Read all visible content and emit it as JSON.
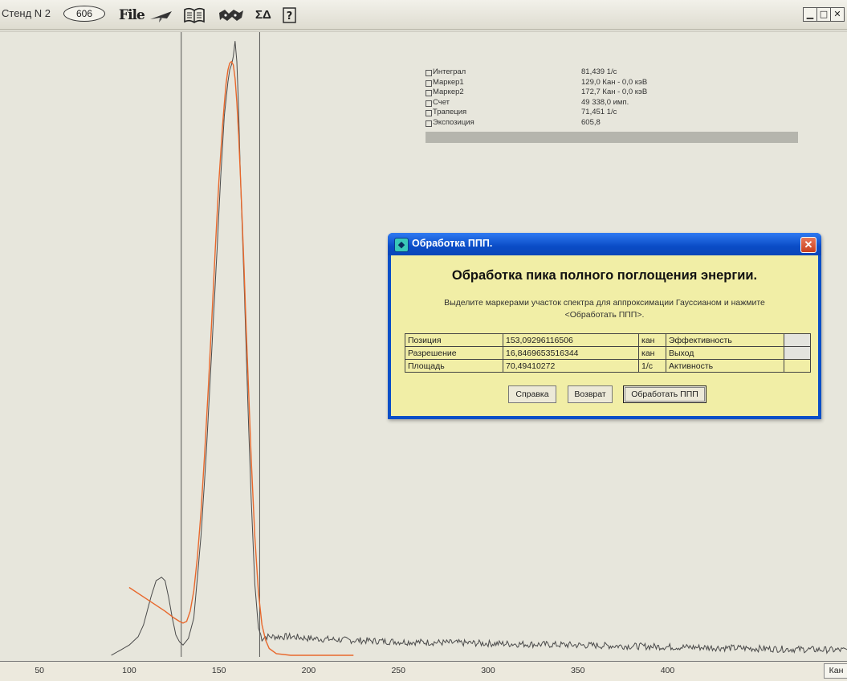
{
  "app": {
    "title": "Стенд N 2",
    "badge": "606",
    "toolbar": {
      "file_label": "File",
      "icons": [
        "plane-icon",
        "book-icon",
        "puzzle-icon",
        "scale-icon",
        "help-icon"
      ],
      "scale_label": "ΣΔ",
      "help_label": "?"
    },
    "window_buttons": {
      "minimize": "▁",
      "maximize": "□",
      "close": "✕"
    }
  },
  "info_panel": [
    {
      "label": "Интеграл",
      "value": "81,439 1/с"
    },
    {
      "label": "Маркер1",
      "value": "129,0 Кан -   0,0 кэВ"
    },
    {
      "label": "Маркер2",
      "value": "172,7 Кан -   0,0 кэВ"
    },
    {
      "label": "Счет",
      "value": "49 338,0 имп."
    },
    {
      "label": "Трапеция",
      "value": "71,451 1/с"
    },
    {
      "label": "Экспозиция",
      "value": "605,8"
    }
  ],
  "dialog": {
    "title": "Обработка ППП.",
    "close_label": "✕",
    "heading": "Обработка пика полного поглощения энергии.",
    "instruction_line1": "Выделите маркерами участок спектра для аппроксимации Гауссианом и нажмите",
    "instruction_line2": "<Обработать ППП>.",
    "rows": [
      {
        "name": "Позиция",
        "value": "153,09296116506",
        "unit": "кан",
        "right": "Эффективность"
      },
      {
        "name": "Разрешение",
        "value": "16,8469653516344",
        "unit": "кан",
        "right": "Выход"
      },
      {
        "name": "Площадь",
        "value": "70,49410272",
        "unit": "1/с",
        "right": "Активность"
      }
    ],
    "buttons": {
      "help": "Справка",
      "back": "Возврат",
      "process": "Обработать ППП"
    }
  },
  "chart_data": {
    "type": "line",
    "xlabel": "Кан",
    "xlim": [
      28,
      500
    ],
    "x_ticks": [
      50,
      100,
      150,
      200,
      250,
      300,
      350,
      400
    ],
    "markers": [
      129.0,
      172.7
    ],
    "colors": {
      "spectrum": "#4a4a4a",
      "fit": "#e8682c",
      "markers": "#555555"
    },
    "series": [
      {
        "x": [
          90,
          95,
          100,
          105,
          108,
          110,
          112,
          115,
          118,
          120,
          122,
          124,
          126,
          128,
          130,
          133,
          136,
          140,
          143,
          146,
          149,
          151,
          153,
          155,
          156,
          157,
          158,
          159,
          160,
          161,
          162,
          164,
          166,
          168,
          170,
          172,
          174,
          176,
          180,
          190,
          200,
          220,
          250,
          300,
          350,
          400,
          450,
          500
        ],
        "y": [
          0,
          3,
          6,
          11,
          18,
          26,
          34,
          44,
          46,
          44,
          34,
          22,
          12,
          8,
          6,
          10,
          22,
          70,
          120,
          180,
          240,
          282,
          318,
          338,
          345,
          348,
          353,
          362,
          350,
          320,
          282,
          220,
          152,
          92,
          42,
          16,
          10,
          11,
          11,
          11,
          10,
          9,
          8,
          7,
          6,
          5,
          4,
          3
        ]
      },
      {
        "x": [
          100,
          110,
          120,
          125,
          128,
          130,
          132,
          134,
          136,
          138,
          140,
          142,
          144,
          146,
          148,
          150,
          152,
          153,
          154,
          155,
          156,
          157,
          158,
          159,
          160,
          161,
          162,
          163,
          164,
          165,
          166,
          168,
          170,
          172,
          174,
          176,
          178,
          182,
          190,
          200,
          210,
          220,
          225
        ],
        "y": [
          40,
          33,
          26,
          22,
          20,
          19,
          20,
          26,
          38,
          58,
          84,
          118,
          156,
          198,
          240,
          280,
          312,
          325,
          337,
          345,
          349,
          350,
          348,
          340,
          326,
          306,
          282,
          256,
          228,
          198,
          170,
          116,
          70,
          37,
          18,
          9,
          4,
          1,
          0,
          0,
          0,
          0,
          0
        ]
      }
    ]
  }
}
